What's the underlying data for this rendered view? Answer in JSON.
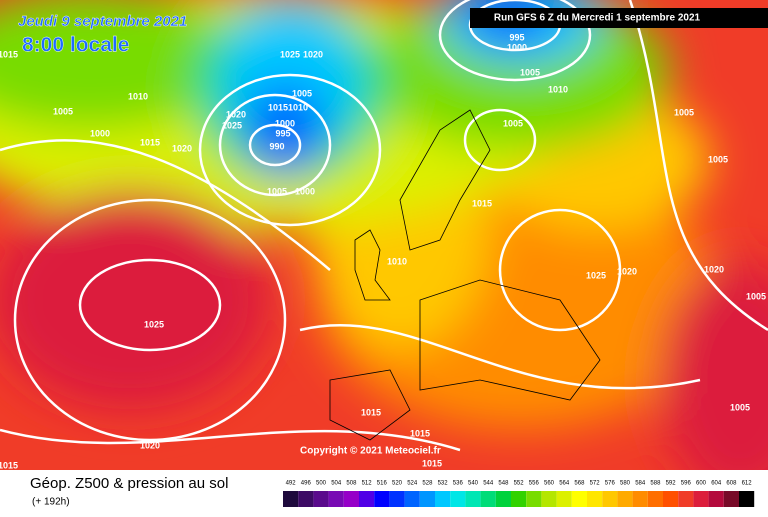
{
  "header": {
    "date": "Jeudi 9 septembre 2021",
    "time": "8:00 locale",
    "run": "Run GFS 6 Z du Mercredi 1 septembre 2021"
  },
  "copyright": "Copyright © 2021 Meteociel.fr",
  "legend": {
    "title": "Géop. Z500 & pression au sol",
    "subtitle": "(+ 192h)",
    "labels": [
      "492",
      "496",
      "500",
      "504",
      "508",
      "512",
      "516",
      "520",
      "524",
      "528",
      "532",
      "536",
      "540",
      "544",
      "548",
      "552",
      "556",
      "560",
      "564",
      "568",
      "572",
      "576",
      "580",
      "584",
      "588",
      "592",
      "596",
      "600",
      "604",
      "608",
      "612"
    ],
    "colors": [
      "#1e0a3c",
      "#3c0a64",
      "#5a0a8c",
      "#780ab4",
      "#9600c8",
      "#5000e6",
      "#0000ff",
      "#0032ff",
      "#0064ff",
      "#0096ff",
      "#00c8ff",
      "#00e6e6",
      "#00e6b4",
      "#00dc78",
      "#00d23c",
      "#32d200",
      "#78dc00",
      "#b4e600",
      "#dcf000",
      "#ffff00",
      "#ffe600",
      "#ffc800",
      "#ffaa00",
      "#ff8c00",
      "#ff6e00",
      "#ff5000",
      "#f03c28",
      "#dc1e3c",
      "#b40a3c",
      "#780a28",
      "#000000"
    ]
  },
  "isobars": [
    "1015",
    "1010",
    "1005",
    "1000",
    "1015",
    "1020",
    "1025",
    "1020",
    "1020",
    "1025",
    "1015",
    "1010",
    "1000",
    "995",
    "990",
    "1005",
    "1005",
    "1000",
    "995",
    "1000",
    "1005",
    "1010",
    "1005",
    "1005",
    "1005",
    "1015",
    "1010",
    "1025",
    "1020",
    "1020",
    "1005",
    "1025",
    "1015",
    "1015",
    "1020",
    "1015",
    "1005",
    "1015"
  ]
}
